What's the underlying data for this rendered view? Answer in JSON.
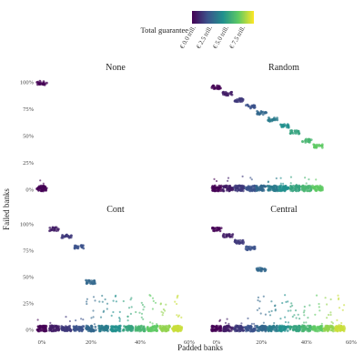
{
  "chart_data": {
    "type": "scatter",
    "legend": {
      "title": "Total guarantee",
      "labels": [
        "€ 0.0 trill.",
        "€ 2.5 trill.",
        "€ 5.0 trill.",
        "€ 7.5 trill."
      ],
      "placement": "top",
      "colors": [
        "#440154",
        "#3b528b",
        "#21908d",
        "#5dc963",
        "#fde725"
      ]
    },
    "xlabel": "Padded banks",
    "ylabel": "Failed banks",
    "xlim": [
      0,
      0.6
    ],
    "ylim": [
      0,
      1
    ],
    "x_ticks": [
      "0%",
      "20%",
      "40%",
      "60%"
    ],
    "y_ticks": [
      "0%",
      "25%",
      "50%",
      "75%",
      "100%"
    ],
    "grid": false,
    "facets": [
      {
        "title": "None",
        "series": [
          {
            "x": 0.0,
            "failed_main": 0.0,
            "failed_high": 0.99,
            "high_share": 0.06
          }
        ]
      },
      {
        "title": "Random",
        "series": [
          {
            "x": 0.0,
            "failed_main": 0.0,
            "failed_high": 0.95,
            "high_share": 0.04
          },
          {
            "x": 0.05,
            "failed_main": 0.0,
            "failed_high": 0.89,
            "high_share": 0.04
          },
          {
            "x": 0.1,
            "failed_main": 0.0,
            "failed_high": 0.83,
            "high_share": 0.04
          },
          {
            "x": 0.15,
            "failed_main": 0.0,
            "failed_high": 0.77,
            "high_share": 0.04
          },
          {
            "x": 0.2,
            "failed_main": 0.0,
            "failed_high": 0.71,
            "high_share": 0.04
          },
          {
            "x": 0.25,
            "failed_main": 0.0,
            "failed_high": 0.65,
            "high_share": 0.04
          },
          {
            "x": 0.3,
            "failed_main": 0.0,
            "failed_high": 0.59,
            "high_share": 0.04
          },
          {
            "x": 0.35,
            "failed_main": 0.0,
            "failed_high": 0.53,
            "high_share": 0.04
          },
          {
            "x": 0.4,
            "failed_main": 0.0,
            "failed_high": 0.45,
            "high_share": 0.04
          },
          {
            "x": 0.45,
            "failed_main": 0.0,
            "failed_high": 0.4,
            "high_share": 0.04
          }
        ]
      },
      {
        "title": "Cont",
        "series": [
          {
            "x": 0.0,
            "failed_main": 0.0,
            "failed_high": 0.0,
            "high_share": 0.0
          },
          {
            "x": 0.05,
            "failed_main": 0.0,
            "failed_high": 0.95,
            "high_share": 0.05
          },
          {
            "x": 0.1,
            "failed_main": 0.0,
            "failed_high": 0.88,
            "high_share": 0.05
          },
          {
            "x": 0.15,
            "failed_main": 0.0,
            "failed_high": 0.78,
            "high_share": 0.05
          },
          {
            "x": 0.2,
            "failed_main": 0.0,
            "failed_high": 0.45,
            "high_share": 0.05
          },
          {
            "x": 0.25,
            "failed_main": 0.0,
            "failed_high": 0.0,
            "high_share": 0.0
          },
          {
            "x": 0.3,
            "failed_main": 0.0,
            "failed_high": 0.0,
            "high_share": 0.0
          },
          {
            "x": 0.35,
            "failed_main": 0.0,
            "failed_high": 0.0,
            "high_share": 0.0
          },
          {
            "x": 0.4,
            "failed_main": 0.0,
            "failed_high": 0.0,
            "high_share": 0.0
          },
          {
            "x": 0.45,
            "failed_main": 0.0,
            "failed_high": 0.0,
            "high_share": 0.0
          },
          {
            "x": 0.5,
            "failed_main": 0.0,
            "failed_high": 0.0,
            "high_share": 0.0
          },
          {
            "x": 0.55,
            "failed_main": 0.0,
            "failed_high": 0.0,
            "high_share": 0.0
          }
        ]
      },
      {
        "title": "Central",
        "series": [
          {
            "x": 0.0,
            "failed_main": 0.0,
            "failed_high": 0.95,
            "high_share": 0.05
          },
          {
            "x": 0.05,
            "failed_main": 0.0,
            "failed_high": 0.89,
            "high_share": 0.05
          },
          {
            "x": 0.1,
            "failed_main": 0.0,
            "failed_high": 0.83,
            "high_share": 0.05
          },
          {
            "x": 0.15,
            "failed_main": 0.0,
            "failed_high": 0.77,
            "high_share": 0.05
          },
          {
            "x": 0.2,
            "failed_main": 0.0,
            "failed_high": 0.57,
            "high_share": 0.02
          },
          {
            "x": 0.25,
            "failed_main": 0.0,
            "failed_high": 0.0,
            "high_share": 0.0
          },
          {
            "x": 0.3,
            "failed_main": 0.0,
            "failed_high": 0.0,
            "high_share": 0.0
          },
          {
            "x": 0.35,
            "failed_main": 0.0,
            "failed_high": 0.0,
            "high_share": 0.0
          },
          {
            "x": 0.4,
            "failed_main": 0.0,
            "failed_high": 0.0,
            "high_share": 0.0
          },
          {
            "x": 0.45,
            "failed_main": 0.0,
            "failed_high": 0.0,
            "high_share": 0.0
          },
          {
            "x": 0.5,
            "failed_main": 0.0,
            "failed_high": 0.0,
            "high_share": 0.0
          },
          {
            "x": 0.55,
            "failed_main": 0.0,
            "failed_high": 0.0,
            "high_share": 0.0
          }
        ]
      }
    ]
  }
}
